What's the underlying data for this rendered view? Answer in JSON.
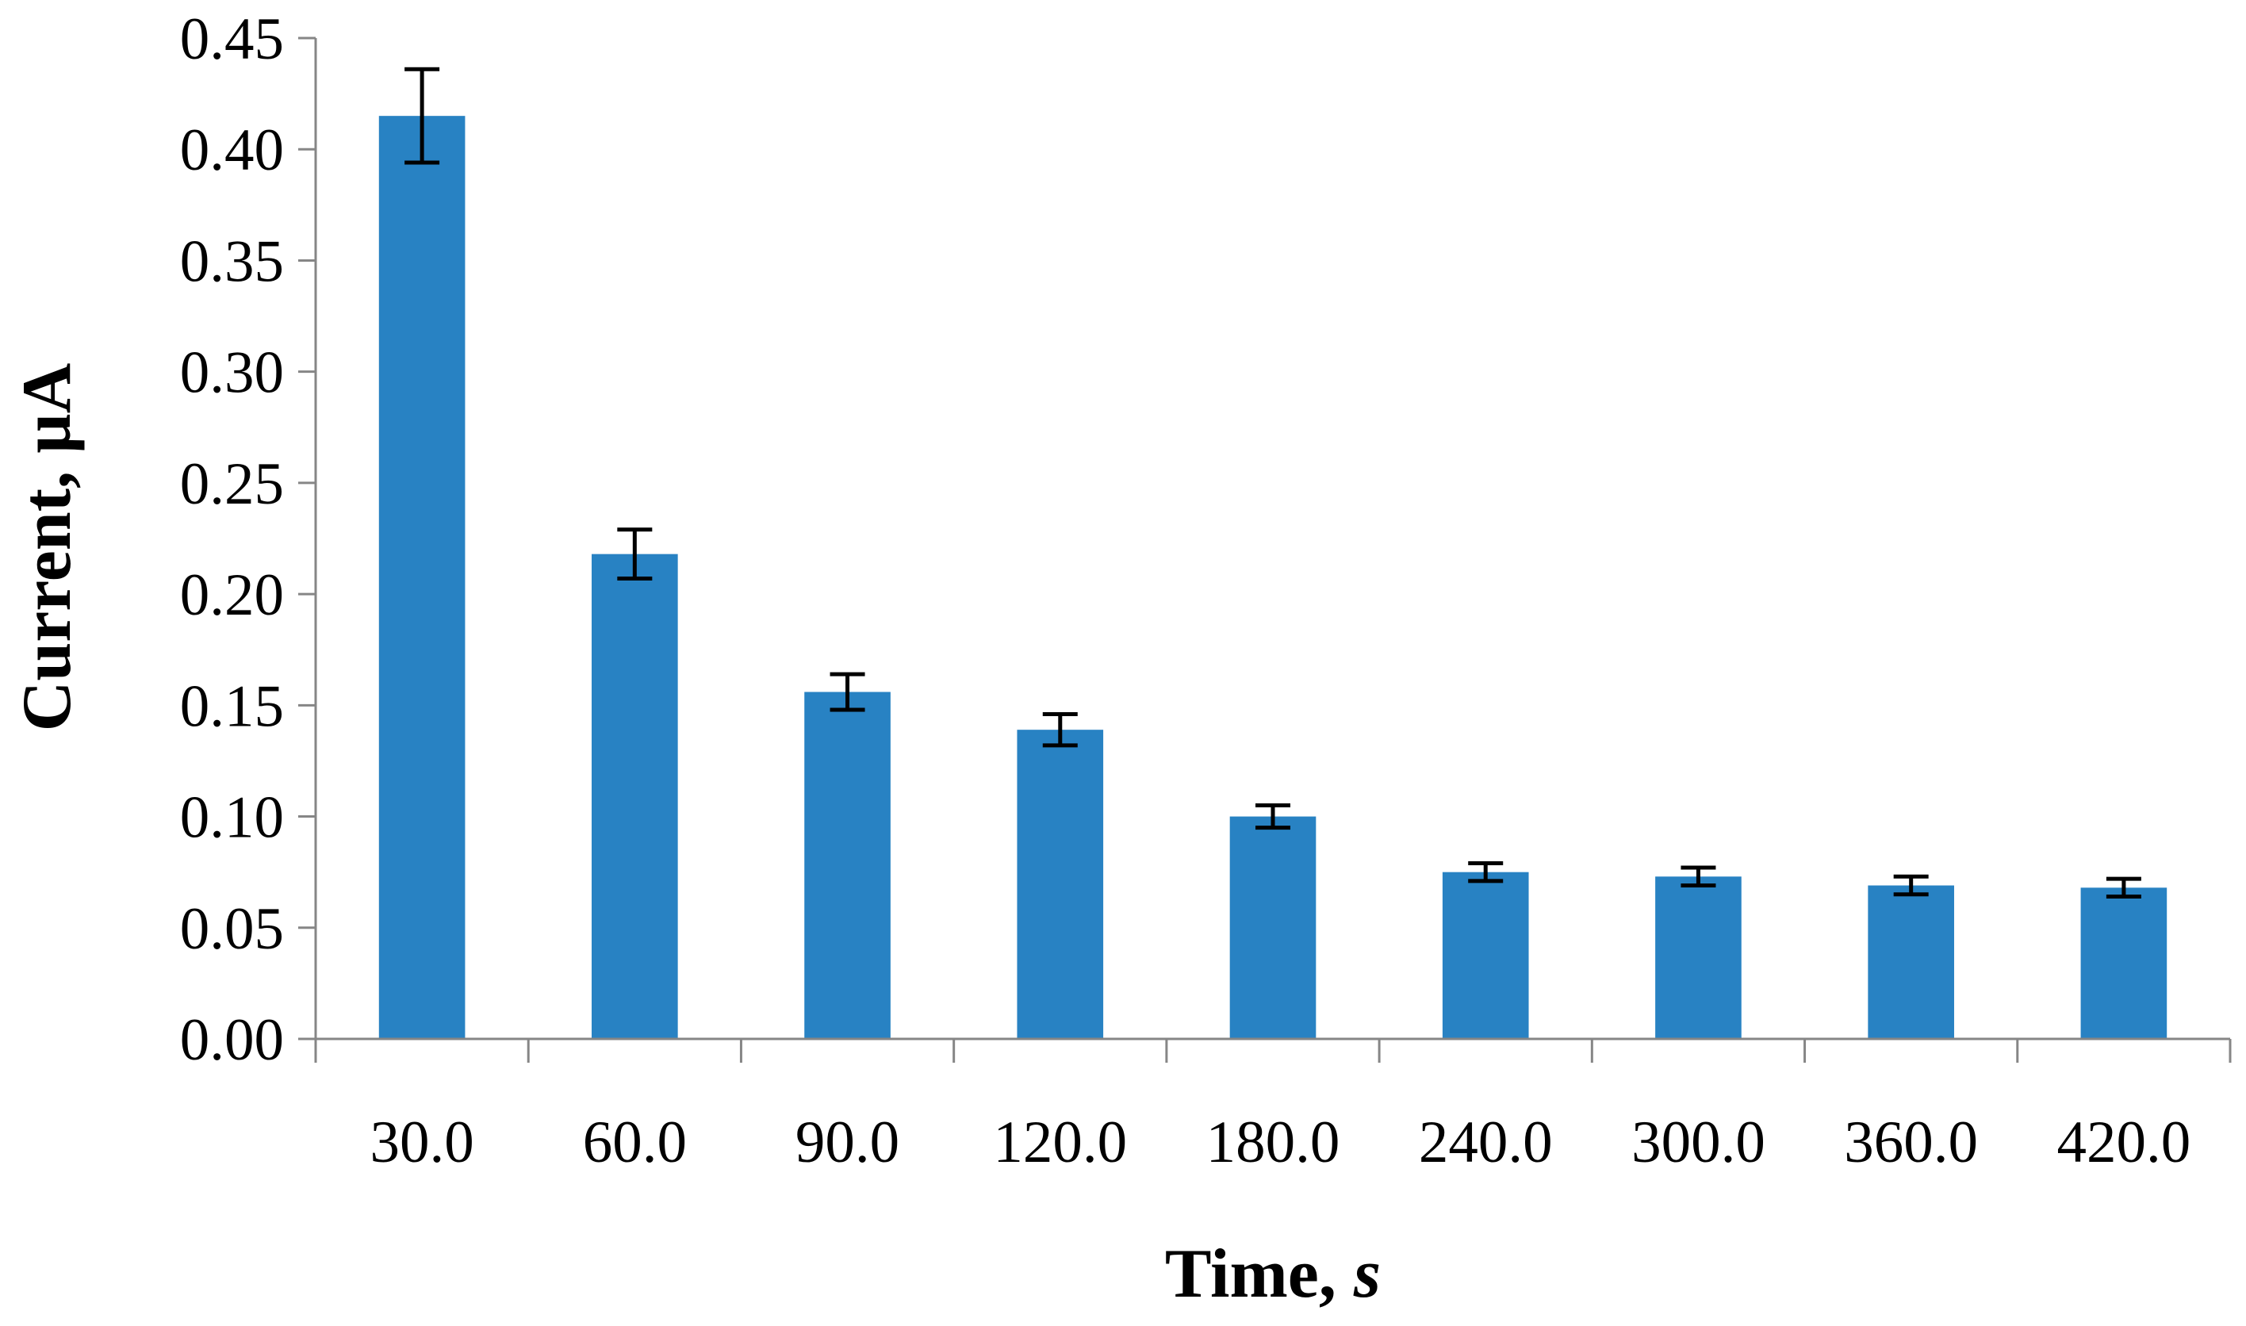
{
  "chart_data": {
    "type": "bar",
    "categories": [
      "30.0",
      "60.0",
      "90.0",
      "120.0",
      "180.0",
      "240.0",
      "300.0",
      "360.0",
      "420.0"
    ],
    "series": [
      {
        "values": [
          0.415,
          0.218,
          0.156,
          0.139,
          0.1,
          0.075,
          0.073,
          0.069,
          0.068
        ],
        "errors": [
          0.021,
          0.011,
          0.008,
          0.007,
          0.005,
          0.004,
          0.004,
          0.004,
          0.004
        ],
        "color": "#2882C3"
      }
    ],
    "xlabel": "Time, ",
    "xlabel_unit": "s",
    "ylabel": "Current, µA",
    "ylim": [
      0,
      0.45
    ],
    "yticks": [
      "0.00",
      "0.05",
      "0.10",
      "0.15",
      "0.20",
      "0.25",
      "0.30",
      "0.35",
      "0.40",
      "0.45"
    ],
    "grid": false,
    "legend": "none"
  }
}
